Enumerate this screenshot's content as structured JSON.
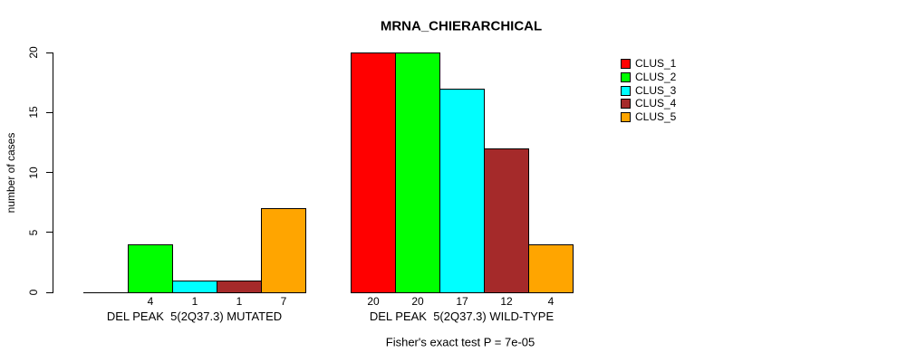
{
  "chart_data": {
    "type": "bar",
    "title": "MRNA_CHIERARCHICAL",
    "ylabel": "number of cases",
    "xlabel": "",
    "categories": [
      "DEL PEAK  5(2Q37.3) MUTATED",
      "DEL PEAK  5(2Q37.3) WILD-TYPE"
    ],
    "series": [
      {
        "name": "CLUS_1",
        "color": "#FF0000",
        "values": [
          0,
          20
        ]
      },
      {
        "name": "CLUS_2",
        "color": "#00FF00",
        "values": [
          4,
          20
        ]
      },
      {
        "name": "CLUS_3",
        "color": "#00FFFF",
        "values": [
          1,
          17
        ]
      },
      {
        "name": "CLUS_4",
        "color": "#A52A2A",
        "values": [
          1,
          12
        ]
      },
      {
        "name": "CLUS_5",
        "color": "#FFA500",
        "values": [
          7,
          4
        ]
      }
    ],
    "ylim": [
      0,
      20
    ],
    "yticks": [
      0,
      5,
      10,
      15,
      20
    ],
    "grid": false,
    "legend_position": "right",
    "bar_value_labels_shown": true,
    "annotation": "Fisher's exact test P = 7e-05"
  }
}
